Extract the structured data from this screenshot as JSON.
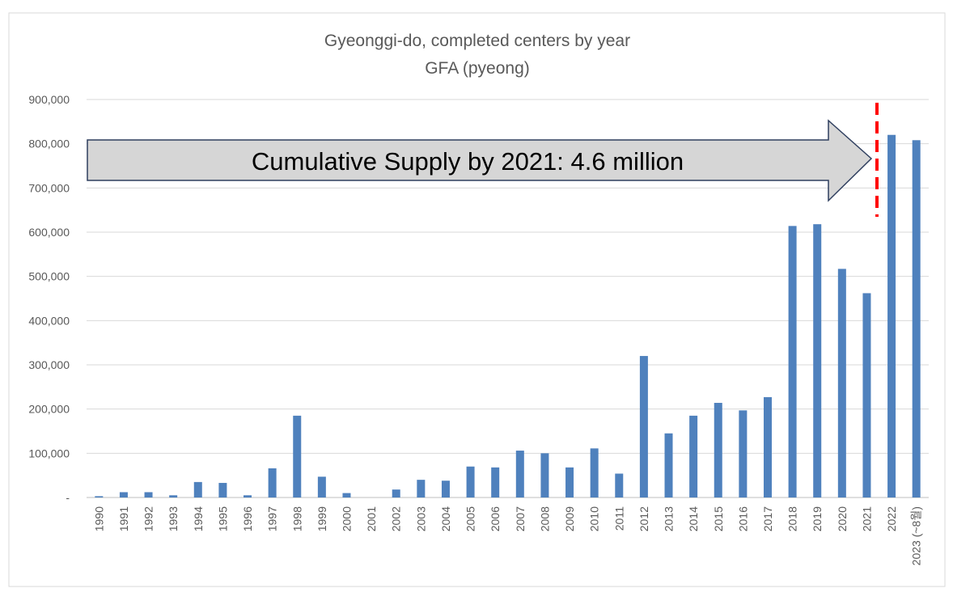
{
  "chart_data": {
    "type": "bar",
    "title": "Gyeonggi-do, completed centers by year",
    "subtitle": "GFA (pyeong)",
    "categories": [
      "1990",
      "1991",
      "1992",
      "1993",
      "1994",
      "1995",
      "1996",
      "1997",
      "1998",
      "1999",
      "2000",
      "2001",
      "2002",
      "2003",
      "2004",
      "2005",
      "2006",
      "2007",
      "2008",
      "2009",
      "2010",
      "2011",
      "2012",
      "2013",
      "2014",
      "2015",
      "2016",
      "2017",
      "2018",
      "2019",
      "2020",
      "2021",
      "2022",
      "2023 (~8월)"
    ],
    "values": [
      3000,
      12000,
      12000,
      5000,
      35000,
      33000,
      5000,
      66000,
      185000,
      47000,
      10000,
      0,
      18000,
      40000,
      38000,
      70000,
      68000,
      106000,
      100000,
      68000,
      111000,
      54000,
      320000,
      145000,
      185000,
      214000,
      197000,
      227000,
      614000,
      618000,
      517000,
      462000,
      820000,
      808000
    ],
    "ylim": [
      0,
      900000
    ],
    "yticks": [
      0,
      100000,
      200000,
      300000,
      400000,
      500000,
      600000,
      700000,
      800000,
      900000
    ],
    "ytick_labels": [
      "-",
      "100,000",
      "200,000",
      "300,000",
      "400,000",
      "500,000",
      "600,000",
      "700,000",
      "800,000",
      "900,000"
    ],
    "grid": true,
    "bar_color": "#4f81bd",
    "annotation": {
      "text": "Cumulative Supply by 2021: 4.6 million",
      "arrow_fill": "#d6d6d6",
      "divider_color": "#ff0000"
    }
  }
}
